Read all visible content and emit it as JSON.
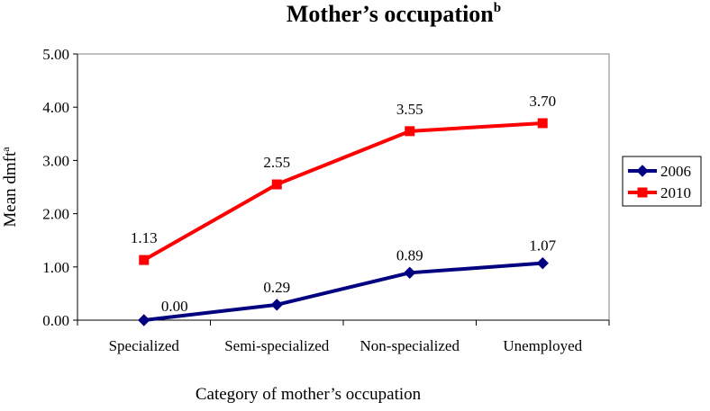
{
  "chart_data": {
    "type": "line",
    "title": "Mother’s occupation",
    "title_superscript": "b",
    "xlabel": "Category of mother’s occupation",
    "ylabel": "Mean dmft",
    "ylabel_superscript": "a",
    "categories": [
      "Specialized",
      "Semi-specialized",
      "Non-specialized",
      "Unemployed"
    ],
    "ylim": [
      0,
      5
    ],
    "yticks": [
      "0.00",
      "1.00",
      "2.00",
      "3.00",
      "4.00",
      "5.00"
    ],
    "legend_position": "right",
    "grid": false,
    "series": [
      {
        "name": "2006",
        "color": "#000080",
        "marker": "diamond",
        "values": [
          0.0,
          0.29,
          0.89,
          1.07
        ],
        "labels": [
          "0.00",
          "0.29",
          "0.89",
          "1.07"
        ]
      },
      {
        "name": "2010",
        "color": "#ff0000",
        "marker": "square",
        "values": [
          1.13,
          2.55,
          3.55,
          3.7
        ],
        "labels": [
          "1.13",
          "2.55",
          "3.55",
          "3.70"
        ]
      }
    ]
  }
}
